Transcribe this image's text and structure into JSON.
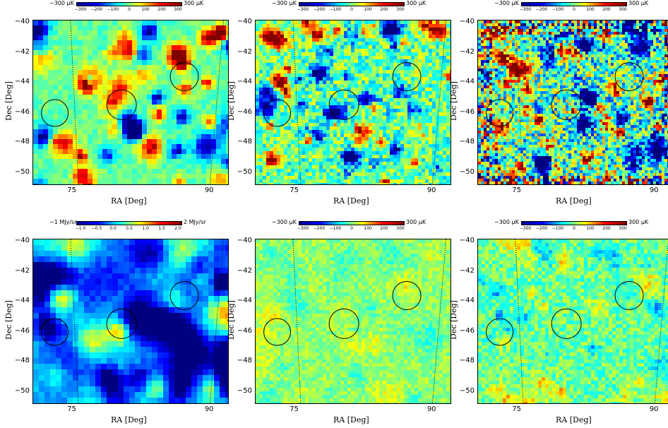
{
  "axes": {
    "xlabel": "RA [Deg]",
    "ylabel": "Dec [Deg]",
    "xticks": [
      "75",
      "90"
    ],
    "yticks": [
      "−40",
      "−42",
      "−44",
      "−46",
      "−48",
      "−50"
    ]
  },
  "panels": [
    {
      "id": "top-left",
      "colorbar": {
        "min_label": "−300 μK",
        "max_label": "300 μK",
        "ticks": [
          "−300",
          "−200",
          "−100",
          "0",
          "100",
          "200",
          "300"
        ]
      },
      "scheme": "smooth",
      "seed": 11
    },
    {
      "id": "top-middle",
      "colorbar": {
        "min_label": "−300 μK",
        "max_label": "300 μK",
        "ticks": [
          "−300",
          "−200",
          "−100",
          "0",
          "100",
          "200",
          "300"
        ]
      },
      "scheme": "noisy",
      "seed": 23
    },
    {
      "id": "top-right",
      "colorbar": {
        "min_label": "−300 μK",
        "max_label": "300 μK",
        "ticks": [
          "−300",
          "−200",
          "−100",
          "0",
          "100",
          "200",
          "300"
        ]
      },
      "scheme": "very-noisy",
      "seed": 37
    },
    {
      "id": "bottom-left",
      "colorbar": {
        "min_label": "−1 MJy/sr",
        "max_label": "2 MJy/sr",
        "ticks": [
          "−1.0",
          "−0.5",
          "0.0",
          "0.5",
          "1.0",
          "1.5",
          "2.0"
        ]
      },
      "scheme": "dust",
      "seed": 41
    },
    {
      "id": "bottom-middle",
      "colorbar": {
        "min_label": "−300 μK",
        "max_label": "300 μK",
        "ticks": [
          "−300",
          "−200",
          "−100",
          "0",
          "100",
          "200",
          "300"
        ]
      },
      "scheme": "flat",
      "seed": 53
    },
    {
      "id": "bottom-right",
      "colorbar": {
        "min_label": "−300 μK",
        "max_label": "300 μK",
        "ticks": [
          "−300",
          "−200",
          "−100",
          "0",
          "100",
          "200",
          "300"
        ]
      },
      "scheme": "residual",
      "seed": 67
    }
  ]
}
